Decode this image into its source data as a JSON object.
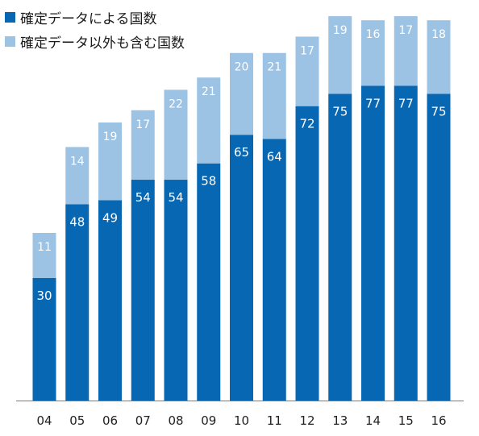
{
  "chart_data": {
    "type": "bar",
    "stacked": true,
    "categories": [
      "04",
      "05",
      "06",
      "07",
      "08",
      "09",
      "10",
      "11",
      "12",
      "13",
      "14",
      "15",
      "16"
    ],
    "series": [
      {
        "name": "確定データによる国数",
        "values": [
          30,
          48,
          49,
          54,
          54,
          58,
          65,
          64,
          72,
          75,
          77,
          77,
          75
        ],
        "color": "#0767b3"
      },
      {
        "name": "確定データ以外も含む国数",
        "values": [
          11,
          14,
          19,
          17,
          22,
          21,
          20,
          21,
          17,
          19,
          16,
          17,
          18
        ],
        "color": "#9cc3e4"
      }
    ],
    "ylim": [
      0,
      95
    ],
    "grid": false,
    "legend_position": "top-left",
    "title": "",
    "xlabel": "",
    "ylabel": ""
  }
}
